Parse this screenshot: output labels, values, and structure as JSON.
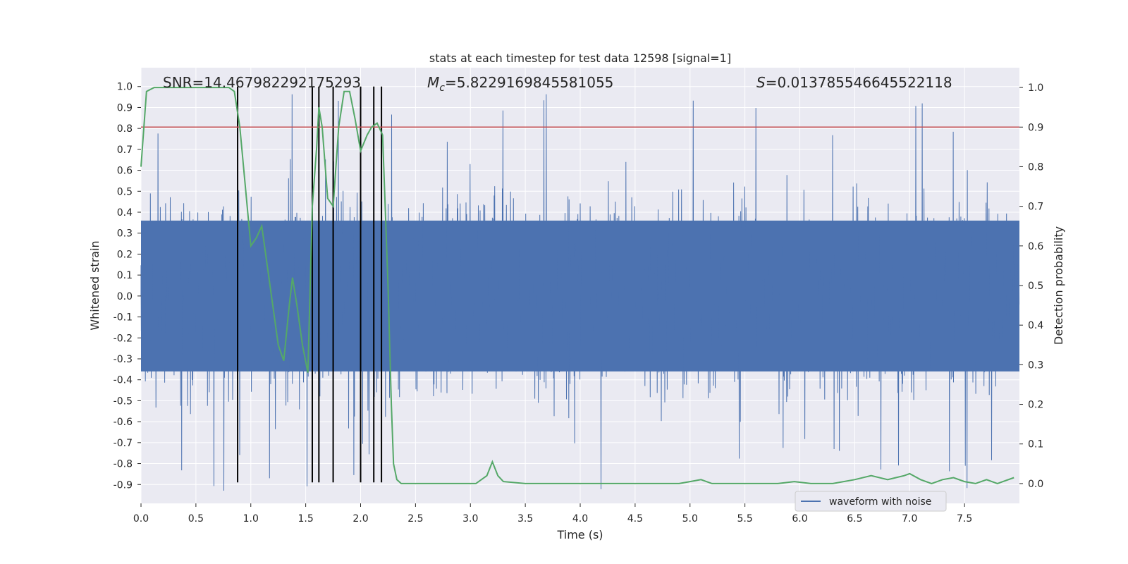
{
  "chart_data": {
    "type": "line",
    "title": "stats at each timestep for test data 12598 [signal=1]",
    "xlabel": "Time (s)",
    "ylabel": "Whitened strain",
    "ylabel_right": "Detection probability",
    "xlim": [
      0.0,
      8.0
    ],
    "ylim": [
      -0.99,
      1.09
    ],
    "ylim_right": [
      -0.05,
      1.05
    ],
    "x_ticks": [
      0.0,
      0.5,
      1.0,
      1.5,
      2.0,
      2.5,
      3.0,
      3.5,
      4.0,
      4.5,
      5.0,
      5.5,
      6.0,
      6.5,
      7.0,
      7.5
    ],
    "x_tick_labels": [
      "0.0",
      "0.5",
      "1.0",
      "1.5",
      "2.0",
      "2.5",
      "3.0",
      "3.5",
      "4.0",
      "4.5",
      "5.0",
      "5.5",
      "6.0",
      "6.5",
      "7.0",
      "7.5"
    ],
    "y_ticks": [
      1.0,
      0.9,
      0.8,
      0.7,
      0.6,
      0.5,
      0.4,
      0.3,
      0.2,
      0.1,
      0.0,
      -0.1,
      -0.2,
      -0.3,
      -0.4,
      -0.5,
      -0.6,
      -0.7,
      -0.8,
      -0.9
    ],
    "y_tick_labels": [
      "1.0",
      "0.9",
      "0.8",
      "0.7",
      "0.6",
      "0.5",
      "0.4",
      "0.3",
      "0.2",
      "0.1",
      "0.0",
      "-0.1",
      "-0.2",
      "-0.3",
      "-0.4",
      "-0.5",
      "-0.6",
      "-0.7",
      "-0.8",
      "-0.9"
    ],
    "y_right_ticks": [
      1.0,
      0.9,
      0.8,
      0.7,
      0.6,
      0.5,
      0.4,
      0.3,
      0.2,
      0.1,
      0.0
    ],
    "y_right_tick_labels": [
      "1.0",
      "0.9",
      "0.8",
      "0.7",
      "0.6",
      "0.5",
      "0.4",
      "0.3",
      "0.2",
      "0.1",
      "0.0"
    ],
    "grid": true,
    "annotations": {
      "snr": "SNR=14.467982292175293",
      "mc_symbol": "M",
      "mc_subscript": "c",
      "mc_value": "=5.8229169845581055",
      "s_symbol": "S",
      "s_value": "=0.013785546645522118"
    },
    "threshold_right": 0.9,
    "vlines_x": [
      0.88,
      1.56,
      1.62,
      1.75,
      2.0,
      2.12,
      2.19
    ],
    "series": [
      {
        "name": "waveform with noise",
        "axis": "left",
        "style": "dense-noise",
        "color": "#4c72b0",
        "core_amplitude": 0.36,
        "max_amplitude": 0.97
      },
      {
        "axis": "right",
        "color": "#55a868",
        "x": [
          0.0,
          0.05,
          0.12,
          0.2,
          0.3,
          0.4,
          0.5,
          0.6,
          0.7,
          0.8,
          0.85,
          0.9,
          0.95,
          1.0,
          1.05,
          1.1,
          1.15,
          1.2,
          1.25,
          1.3,
          1.35,
          1.38,
          1.42,
          1.47,
          1.52,
          1.56,
          1.6,
          1.62,
          1.65,
          1.7,
          1.75,
          1.8,
          1.85,
          1.9,
          1.95,
          2.0,
          2.06,
          2.1,
          2.15,
          2.2,
          2.25,
          2.28,
          2.3,
          2.33,
          2.37,
          2.4,
          2.5,
          2.6,
          2.7,
          2.8,
          2.9,
          3.0,
          3.05,
          3.1,
          3.15,
          3.2,
          3.25,
          3.3,
          3.5,
          3.7,
          3.9,
          4.1,
          4.3,
          4.5,
          4.7,
          4.9,
          5.0,
          5.1,
          5.2,
          5.4,
          5.6,
          5.8,
          5.95,
          6.1,
          6.3,
          6.5,
          6.65,
          6.8,
          6.95,
          7.0,
          7.1,
          7.2,
          7.3,
          7.4,
          7.5,
          7.6,
          7.7,
          7.8,
          7.85,
          7.95
        ],
        "y": [
          0.8,
          0.99,
          1.0,
          1.0,
          1.0,
          1.0,
          1.0,
          1.0,
          1.0,
          1.0,
          0.99,
          0.9,
          0.75,
          0.6,
          0.62,
          0.65,
          0.55,
          0.45,
          0.35,
          0.31,
          0.45,
          0.52,
          0.45,
          0.35,
          0.28,
          0.7,
          0.85,
          0.95,
          0.9,
          0.72,
          0.7,
          0.9,
          0.99,
          0.99,
          0.92,
          0.84,
          0.88,
          0.9,
          0.91,
          0.88,
          0.5,
          0.2,
          0.05,
          0.01,
          0.0,
          0.0,
          0.0,
          0.0,
          0.0,
          0.0,
          0.0,
          0.0,
          0.0,
          0.01,
          0.02,
          0.055,
          0.02,
          0.005,
          0.0,
          0.0,
          0.0,
          0.0,
          0.0,
          0.0,
          0.0,
          0.0,
          0.005,
          0.01,
          0.0,
          0.0,
          0.0,
          0.0,
          0.005,
          0.0,
          0.0,
          0.01,
          0.02,
          0.01,
          0.02,
          0.025,
          0.01,
          0.0,
          0.01,
          0.015,
          0.005,
          0.0,
          0.01,
          0.0,
          0.005,
          0.015
        ]
      }
    ],
    "legend": {
      "label": "waveform with noise",
      "position": "lower-right"
    },
    "colors": {
      "background": "#eaeaf2",
      "grid": "#ffffff",
      "waveform": "#4c72b0",
      "probability": "#55a868",
      "threshold": "#c44e52",
      "vlines": "#000000"
    }
  }
}
